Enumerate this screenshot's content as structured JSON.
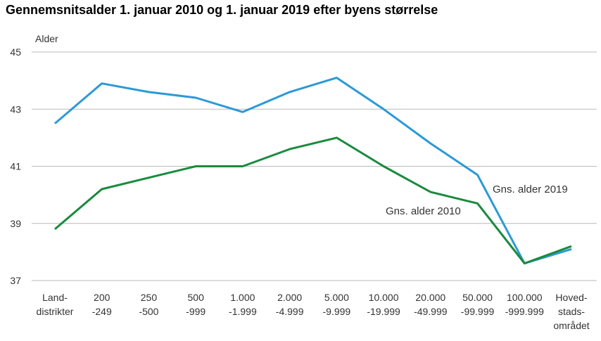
{
  "chart_data": {
    "type": "line",
    "title": "Gennemsnitsalder 1. januar 2010 og 1. januar 2019 efter byens størrelse",
    "ylabel": "Alder",
    "xlabel": "",
    "ylim": [
      37,
      45
    ],
    "yticks": [
      37,
      39,
      41,
      43,
      45
    ],
    "grid": true,
    "categories": [
      [
        "Land-",
        "distrikter"
      ],
      [
        "200",
        "-249"
      ],
      [
        "250",
        "-500"
      ],
      [
        "500",
        "-999"
      ],
      [
        "1.000",
        "-1.999"
      ],
      [
        "2.000",
        "-4.999"
      ],
      [
        "5.000",
        "-9.999"
      ],
      [
        "10.000",
        "-19.999"
      ],
      [
        "20.000",
        "-49.999"
      ],
      [
        "50.000",
        "-99.999"
      ],
      [
        "100.000",
        "-999.999"
      ],
      [
        "Hoved-",
        "stads-",
        "området"
      ]
    ],
    "series": [
      {
        "name": "Gns. alder 2019",
        "color": "#2b9ad6",
        "values": [
          42.5,
          43.9,
          43.6,
          43.4,
          42.9,
          43.6,
          44.1,
          43.0,
          41.8,
          40.7,
          37.6,
          38.1
        ]
      },
      {
        "name": "Gns. alder 2010",
        "color": "#1a8a3e",
        "values": [
          38.8,
          40.2,
          40.6,
          41.0,
          41.0,
          41.6,
          42.0,
          41.0,
          40.1,
          39.7,
          37.6,
          38.2
        ]
      }
    ]
  }
}
